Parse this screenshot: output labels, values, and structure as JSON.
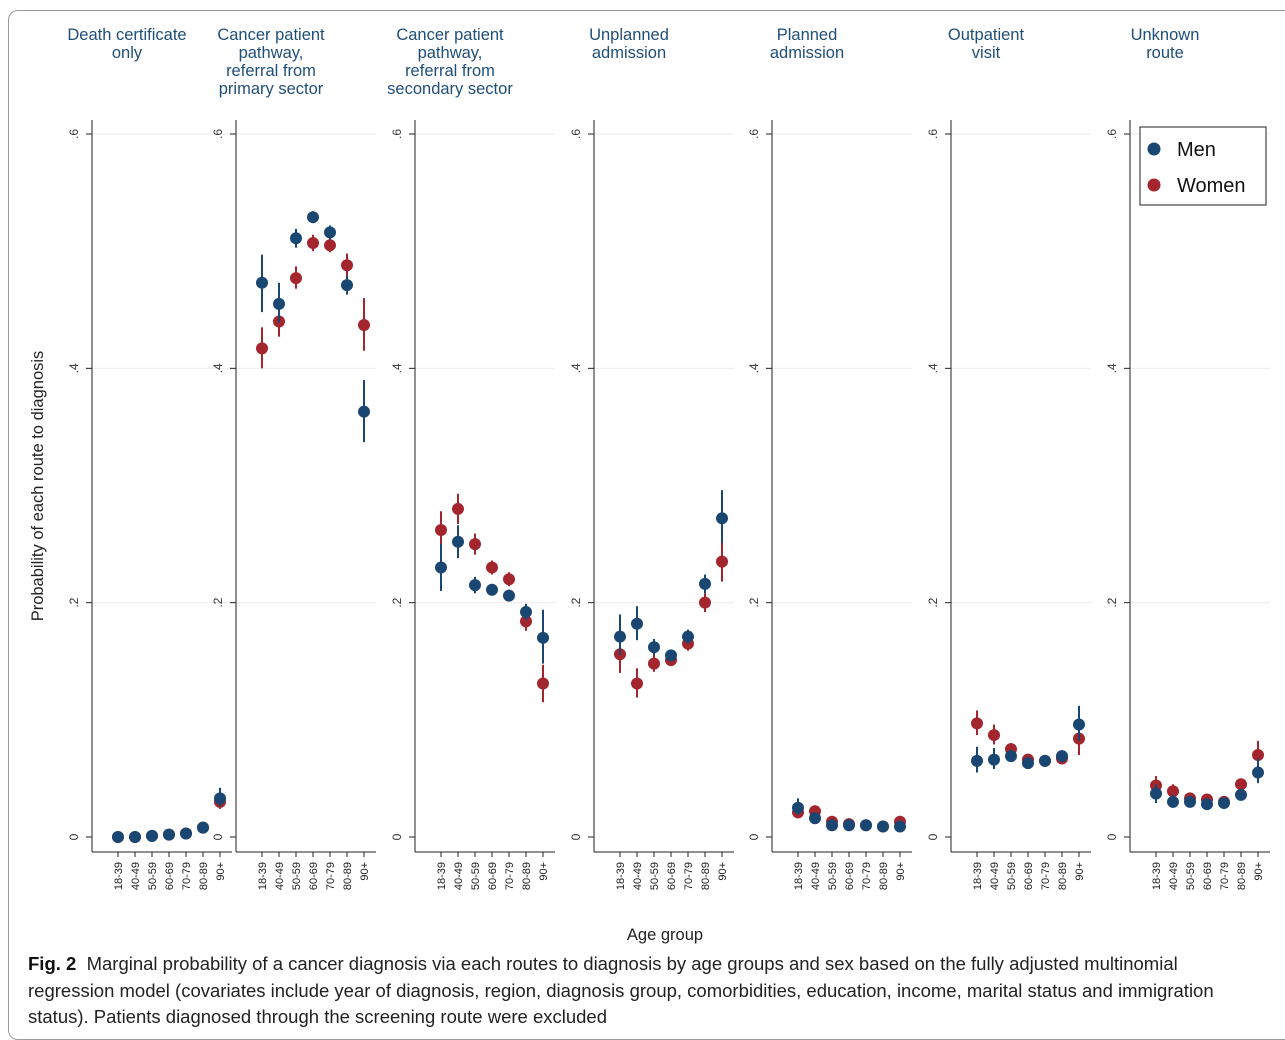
{
  "chart_data": {
    "type": "scatter",
    "ylabel": "Probability of each route to diagnosis",
    "xlabel": "Age group",
    "ylim": [
      0,
      0.6
    ],
    "yticks": [
      0,
      0.2,
      0.4,
      0.6
    ],
    "ytick_labels": [
      "0",
      ".2",
      ".4",
      ".6"
    ],
    "categories": [
      "18-39",
      "40-49",
      "50-59",
      "60-69",
      "70-79",
      "80-89",
      "90+"
    ],
    "legend": {
      "placement": "top-right",
      "entries": [
        "Men",
        "Women"
      ]
    },
    "colors": {
      "Men": "#1a4772",
      "Women": "#a3252d"
    },
    "panels": [
      {
        "title": "Death certificate\nonly",
        "series": [
          {
            "name": "Men",
            "values": [
              0.0,
              0.0,
              0.001,
              0.002,
              0.003,
              0.008,
              0.033
            ],
            "ci": [
              [
                0,
                0
              ],
              [
                0,
                0
              ],
              [
                0,
                0.002
              ],
              [
                0.001,
                0.003
              ],
              [
                0.002,
                0.004
              ],
              [
                0.006,
                0.01
              ],
              [
                0.026,
                0.042
              ]
            ]
          },
          {
            "name": "Women",
            "values": [
              0.0,
              0.0,
              0.001,
              0.002,
              0.003,
              0.008,
              0.03
            ],
            "ci": [
              [
                0,
                0
              ],
              [
                0,
                0
              ],
              [
                0,
                0.002
              ],
              [
                0.001,
                0.003
              ],
              [
                0.002,
                0.004
              ],
              [
                0.006,
                0.01
              ],
              [
                0.024,
                0.036
              ]
            ]
          }
        ]
      },
      {
        "title": "Cancer patient\npathway,\nreferral from\nprimary sector",
        "series": [
          {
            "name": "Men",
            "values": [
              0.473,
              0.455,
              0.511,
              0.529,
              0.516,
              0.471,
              0.363
            ],
            "ci": [
              [
                0.448,
                0.497
              ],
              [
                0.439,
                0.473
              ],
              [
                0.503,
                0.519
              ],
              [
                0.524,
                0.534
              ],
              [
                0.51,
                0.522
              ],
              [
                0.463,
                0.479
              ],
              [
                0.337,
                0.39
              ]
            ]
          },
          {
            "name": "Women",
            "values": [
              0.417,
              0.44,
              0.477,
              0.507,
              0.505,
              0.488,
              0.437
            ],
            "ci": [
              [
                0.4,
                0.435
              ],
              [
                0.427,
                0.453
              ],
              [
                0.468,
                0.487
              ],
              [
                0.5,
                0.514
              ],
              [
                0.499,
                0.511
              ],
              [
                0.478,
                0.498
              ],
              [
                0.415,
                0.46
              ]
            ]
          }
        ]
      },
      {
        "title": "Cancer patient\npathway,\nreferral from\nsecondary sector",
        "series": [
          {
            "name": "Men",
            "values": [
              0.23,
              0.252,
              0.215,
              0.211,
              0.206,
              0.192,
              0.17
            ],
            "ci": [
              [
                0.21,
                0.25
              ],
              [
                0.238,
                0.266
              ],
              [
                0.208,
                0.222
              ],
              [
                0.206,
                0.216
              ],
              [
                0.201,
                0.211
              ],
              [
                0.185,
                0.199
              ],
              [
                0.148,
                0.194
              ]
            ]
          },
          {
            "name": "Women",
            "values": [
              0.262,
              0.28,
              0.25,
              0.23,
              0.22,
              0.184,
              0.131
            ],
            "ci": [
              [
                0.245,
                0.278
              ],
              [
                0.267,
                0.293
              ],
              [
                0.241,
                0.259
              ],
              [
                0.224,
                0.236
              ],
              [
                0.214,
                0.226
              ],
              [
                0.176,
                0.192
              ],
              [
                0.115,
                0.147
              ]
            ]
          }
        ]
      },
      {
        "title": "Unplanned\nadmission",
        "series": [
          {
            "name": "Men",
            "values": [
              0.171,
              0.182,
              0.162,
              0.155,
              0.171,
              0.216,
              0.272
            ],
            "ci": [
              [
                0.155,
                0.19
              ],
              [
                0.168,
                0.197
              ],
              [
                0.155,
                0.169
              ],
              [
                0.15,
                0.16
              ],
              [
                0.165,
                0.177
              ],
              [
                0.208,
                0.224
              ],
              [
                0.251,
                0.296
              ]
            ]
          },
          {
            "name": "Women",
            "values": [
              0.156,
              0.131,
              0.148,
              0.151,
              0.165,
              0.2,
              0.235
            ],
            "ci": [
              [
                0.14,
                0.172
              ],
              [
                0.119,
                0.144
              ],
              [
                0.141,
                0.156
              ],
              [
                0.146,
                0.157
              ],
              [
                0.159,
                0.171
              ],
              [
                0.192,
                0.208
              ],
              [
                0.218,
                0.254
              ]
            ]
          }
        ]
      },
      {
        "title": "Planned\nadmission",
        "series": [
          {
            "name": "Men",
            "values": [
              0.025,
              0.016,
              0.01,
              0.01,
              0.01,
              0.009,
              0.009
            ],
            "ci": [
              [
                0.019,
                0.033
              ],
              [
                0.012,
                0.02
              ],
              [
                0.008,
                0.012
              ],
              [
                0.008,
                0.011
              ],
              [
                0.008,
                0.011
              ],
              [
                0.007,
                0.011
              ],
              [
                0.005,
                0.013
              ]
            ]
          },
          {
            "name": "Women",
            "values": [
              0.021,
              0.022,
              0.013,
              0.011,
              0.01,
              0.009,
              0.013
            ],
            "ci": [
              [
                0.016,
                0.027
              ],
              [
                0.018,
                0.027
              ],
              [
                0.011,
                0.016
              ],
              [
                0.009,
                0.013
              ],
              [
                0.009,
                0.011
              ],
              [
                0.007,
                0.011
              ],
              [
                0.009,
                0.018
              ]
            ]
          }
        ]
      },
      {
        "title": "Outpatient\nvisit",
        "series": [
          {
            "name": "Men",
            "values": [
              0.065,
              0.066,
              0.069,
              0.063,
              0.065,
              0.069,
              0.096
            ],
            "ci": [
              [
                0.055,
                0.077
              ],
              [
                0.058,
                0.076
              ],
              [
                0.064,
                0.074
              ],
              [
                0.06,
                0.066
              ],
              [
                0.062,
                0.068
              ],
              [
                0.065,
                0.074
              ],
              [
                0.082,
                0.112
              ]
            ]
          },
          {
            "name": "Women",
            "values": [
              0.097,
              0.087,
              0.075,
              0.066,
              0.065,
              0.067,
              0.084
            ],
            "ci": [
              [
                0.087,
                0.108
              ],
              [
                0.079,
                0.096
              ],
              [
                0.07,
                0.08
              ],
              [
                0.062,
                0.07
              ],
              [
                0.062,
                0.068
              ],
              [
                0.063,
                0.072
              ],
              [
                0.07,
                0.097
              ]
            ]
          }
        ]
      },
      {
        "title": "Unknown\nroute",
        "series": [
          {
            "name": "Men",
            "values": [
              0.037,
              0.03,
              0.03,
              0.028,
              0.029,
              0.036,
              0.055
            ],
            "ci": [
              [
                0.029,
                0.045
              ],
              [
                0.025,
                0.036
              ],
              [
                0.027,
                0.034
              ],
              [
                0.026,
                0.031
              ],
              [
                0.027,
                0.032
              ],
              [
                0.032,
                0.041
              ],
              [
                0.046,
                0.067
              ]
            ]
          },
          {
            "name": "Women",
            "values": [
              0.044,
              0.039,
              0.033,
              0.032,
              0.03,
              0.045,
              0.07
            ],
            "ci": [
              [
                0.036,
                0.052
              ],
              [
                0.033,
                0.045
              ],
              [
                0.029,
                0.037
              ],
              [
                0.029,
                0.035
              ],
              [
                0.027,
                0.033
              ],
              [
                0.04,
                0.05
              ],
              [
                0.06,
                0.082
              ]
            ]
          }
        ]
      }
    ]
  },
  "caption": {
    "label": "Fig. 2",
    "text": "Marginal probability of a cancer diagnosis via each routes to diagnosis by age groups and sex based on the fully adjusted multinomial regression model (covariates include year of diagnosis, region, diagnosis group, comorbidities, education, income, marital status and immigration status). Patients diagnosed through the screening route were excluded"
  }
}
